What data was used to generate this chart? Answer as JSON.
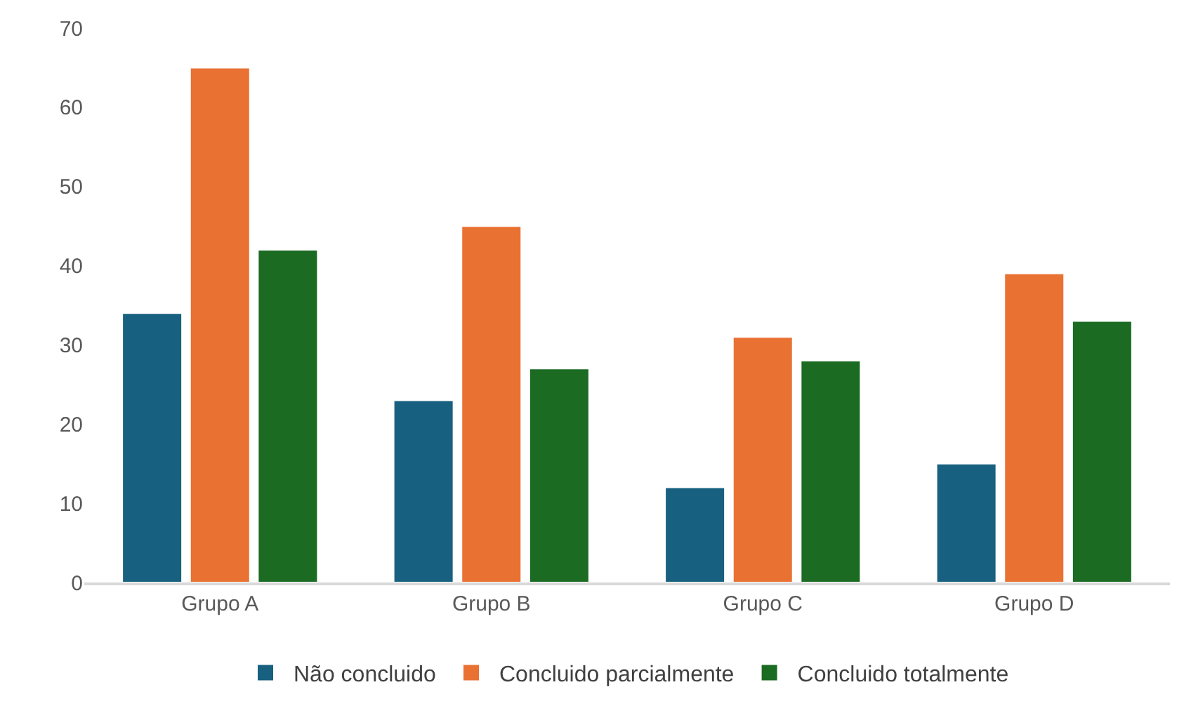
{
  "chart_data": {
    "type": "bar",
    "categories": [
      "Grupo A",
      "Grupo B",
      "Grupo C",
      "Grupo D"
    ],
    "series": [
      {
        "name": "Não concluido",
        "color": "#17607f",
        "values": [
          34,
          23,
          12,
          15
        ]
      },
      {
        "name": "Concluido parcialmente",
        "color": "#e97132",
        "values": [
          65,
          45,
          31,
          39
        ]
      },
      {
        "name": "Concluido totalmente",
        "color": "#1b6b23",
        "values": [
          42,
          27,
          28,
          33
        ]
      }
    ],
    "ylim": [
      0,
      70
    ],
    "yticks": [
      0,
      10,
      20,
      30,
      40,
      50,
      60,
      70
    ],
    "grid": false,
    "legend": "bottom"
  }
}
